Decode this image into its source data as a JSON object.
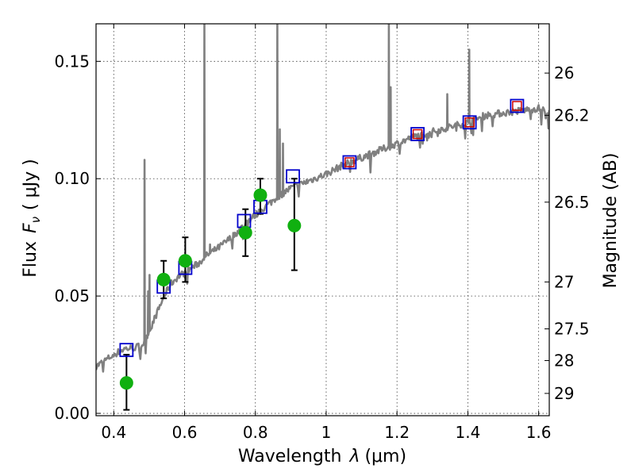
{
  "chart_data": {
    "type": "scatter",
    "xlabel": "Wavelength",
    "xlabel_symbol": "λ",
    "xlabel_unit": "(μm)",
    "ylabel": "Flux",
    "ylabel_symbol": "F",
    "ylabel_subscript": "ν",
    "ylabel_unit": "( μJy )",
    "y2label": "Magnitude (AB)",
    "xlim": [
      0.35,
      1.63
    ],
    "ylim": [
      -0.001,
      0.166
    ],
    "grid": true,
    "x_ticks": [
      {
        "value": 0.4,
        "label": "0.4"
      },
      {
        "value": 0.6,
        "label": "0.6"
      },
      {
        "value": 0.8,
        "label": "0.8"
      },
      {
        "value": 1.0,
        "label": "1"
      },
      {
        "value": 1.2,
        "label": "1.2"
      },
      {
        "value": 1.4,
        "label": "1.4"
      },
      {
        "value": 1.6,
        "label": "1.6"
      }
    ],
    "y_ticks": [
      {
        "value": 0.0,
        "label": "0.00"
      },
      {
        "value": 0.05,
        "label": "0.05"
      },
      {
        "value": 0.1,
        "label": "0.10"
      },
      {
        "value": 0.15,
        "label": "0.15"
      }
    ],
    "y2_ticks": [
      {
        "flux": 0.145,
        "label": "26"
      },
      {
        "flux": 0.127,
        "label": "26.2"
      },
      {
        "flux": 0.09,
        "label": "26.5"
      },
      {
        "flux": 0.056,
        "label": "27"
      },
      {
        "flux": 0.036,
        "label": "27.5"
      },
      {
        "flux": 0.0225,
        "label": "28"
      },
      {
        "flux": 0.0085,
        "label": "29"
      }
    ],
    "colors": {
      "sed": "#808080",
      "model_box": "#0000cc",
      "inner_box": "#cc0000",
      "observed": "#10b010",
      "errorbar": "#000000"
    },
    "sed_continuum": [
      [
        0.35,
        0.02
      ],
      [
        0.37,
        0.022
      ],
      [
        0.4,
        0.025
      ],
      [
        0.43,
        0.0275
      ],
      [
        0.46,
        0.028
      ],
      [
        0.48,
        0.029
      ],
      [
        0.5,
        0.035
      ],
      [
        0.52,
        0.042
      ],
      [
        0.54,
        0.049
      ],
      [
        0.56,
        0.055
      ],
      [
        0.58,
        0.058
      ],
      [
        0.6,
        0.06
      ],
      [
        0.62,
        0.062
      ],
      [
        0.64,
        0.064
      ],
      [
        0.66,
        0.067
      ],
      [
        0.7,
        0.071
      ],
      [
        0.74,
        0.076
      ],
      [
        0.78,
        0.082
      ],
      [
        0.82,
        0.087
      ],
      [
        0.86,
        0.092
      ],
      [
        0.9,
        0.096
      ],
      [
        0.95,
        0.099
      ],
      [
        1.0,
        0.102
      ],
      [
        1.05,
        0.106
      ],
      [
        1.1,
        0.109
      ],
      [
        1.15,
        0.112
      ],
      [
        1.2,
        0.115
      ],
      [
        1.25,
        0.118
      ],
      [
        1.3,
        0.12
      ],
      [
        1.35,
        0.122
      ],
      [
        1.4,
        0.124
      ],
      [
        1.45,
        0.127
      ],
      [
        1.5,
        0.128
      ],
      [
        1.55,
        0.129
      ],
      [
        1.6,
        0.13
      ],
      [
        1.63,
        0.128
      ]
    ],
    "sed_emission_lines": [
      {
        "x": 0.487,
        "peak": 0.108
      },
      {
        "x": 0.497,
        "peak": 0.052
      },
      {
        "x": 0.501,
        "peak": 0.059
      },
      {
        "x": 0.656,
        "peak": 0.166
      },
      {
        "x": 0.672,
        "peak": 0.072
      },
      {
        "x": 0.862,
        "peak": 0.166
      },
      {
        "x": 0.869,
        "peak": 0.121
      },
      {
        "x": 0.878,
        "peak": 0.115
      },
      {
        "x": 1.177,
        "peak": 0.166
      },
      {
        "x": 1.182,
        "peak": 0.139
      },
      {
        "x": 1.342,
        "peak": 0.136
      },
      {
        "x": 1.404,
        "peak": 0.155
      }
    ],
    "model_points": [
      {
        "x": 0.436,
        "y": 0.027
      },
      {
        "x": 0.541,
        "y": 0.054
      },
      {
        "x": 0.602,
        "y": 0.062
      },
      {
        "x": 0.768,
        "y": 0.082
      },
      {
        "x": 0.814,
        "y": 0.088
      },
      {
        "x": 0.906,
        "y": 0.101
      },
      {
        "x": 1.066,
        "y": 0.107,
        "inner": true
      },
      {
        "x": 1.258,
        "y": 0.119,
        "inner": true
      },
      {
        "x": 1.405,
        "y": 0.124,
        "inner": true
      },
      {
        "x": 1.539,
        "y": 0.131,
        "inner": true
      }
    ],
    "observed_points": [
      {
        "x": 0.436,
        "y": 0.013,
        "err_lo": 0.0015,
        "err_hi": 0.025
      },
      {
        "x": 0.541,
        "y": 0.057,
        "err_lo": 0.049,
        "err_hi": 0.065
      },
      {
        "x": 0.602,
        "y": 0.065,
        "err_lo": 0.056,
        "err_hi": 0.075
      },
      {
        "x": 0.772,
        "y": 0.077,
        "err_lo": 0.067,
        "err_hi": 0.087
      },
      {
        "x": 0.814,
        "y": 0.093,
        "err_lo": 0.085,
        "err_hi": 0.1
      },
      {
        "x": 0.91,
        "y": 0.08,
        "err_lo": 0.061,
        "err_hi": 0.1
      }
    ]
  }
}
